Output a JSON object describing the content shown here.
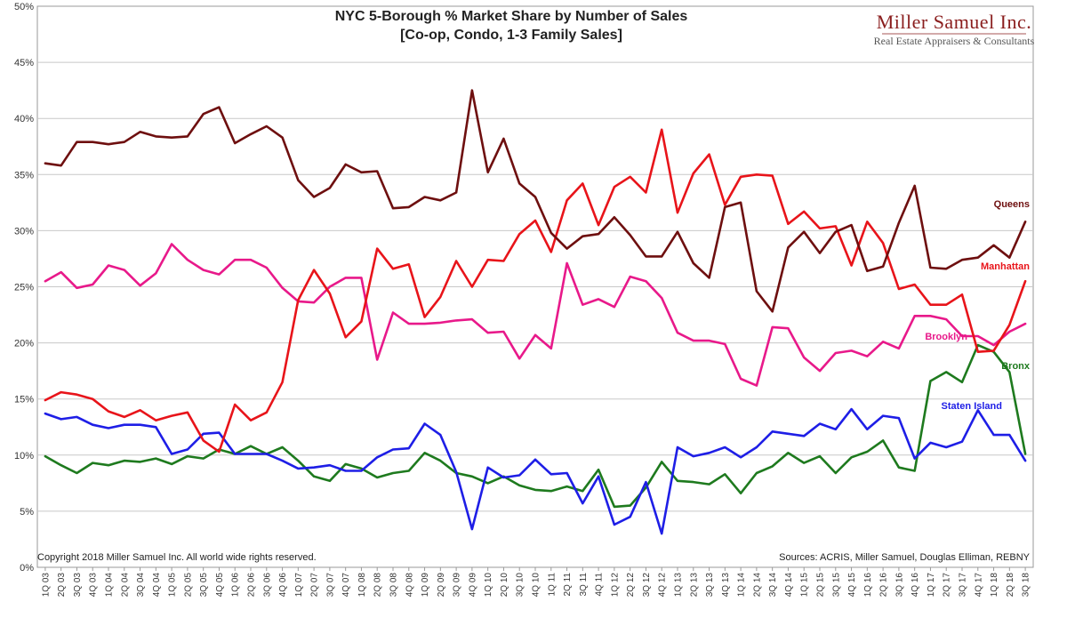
{
  "colors": {
    "Queens": "#6e0f0f",
    "Manhattan": "#e8141a",
    "Brooklyn": "#e8198a",
    "Bronx": "#1e7a1e",
    "Staten Island": "#1e1ee6"
  },
  "logo": {
    "name": "Miller Samuel Inc.",
    "subtitle": "Real Estate Appraisers & Consultants"
  },
  "copyright": "Copyright 2018 Miller Samuel Inc.  All world wide rights reserved.",
  "sources": "Sources: ACRIS, Miller Samuel, Douglas Elliman, REBNY",
  "chart_data": {
    "type": "line",
    "title": "NYC 5-Borough % Market Share by Number of Sales",
    "subtitle": "[Co-op, Condo, 1-3 Family Sales]",
    "xlabel": "",
    "ylabel": "",
    "ylim": [
      0,
      50
    ],
    "yticks": [
      "0%",
      "5%",
      "10%",
      "15%",
      "20%",
      "25%",
      "30%",
      "35%",
      "40%",
      "45%",
      "50%"
    ],
    "grid": true,
    "categories": [
      "1Q 03",
      "2Q 03",
      "3Q 03",
      "4Q 03",
      "1Q 04",
      "2Q 04",
      "3Q 04",
      "4Q 04",
      "1Q 05",
      "2Q 05",
      "3Q 05",
      "4Q 05",
      "1Q 06",
      "2Q 06",
      "3Q 06",
      "4Q 06",
      "1Q 07",
      "2Q 07",
      "3Q 07",
      "4Q 07",
      "1Q 08",
      "2Q 08",
      "3Q 08",
      "4Q 08",
      "1Q 09",
      "2Q 09",
      "3Q 09",
      "4Q 09",
      "1Q 10",
      "2Q 10",
      "3Q 10",
      "4Q 10",
      "1Q 11",
      "2Q 11",
      "3Q 11",
      "4Q 11",
      "1Q 12",
      "2Q 12",
      "3Q 12",
      "4Q 12",
      "1Q 13",
      "2Q 13",
      "3Q 13",
      "4Q 13",
      "1Q 14",
      "2Q 14",
      "3Q 14",
      "4Q 14",
      "1Q 15",
      "2Q 15",
      "3Q 15",
      "4Q 15",
      "1Q 16",
      "2Q 16",
      "3Q 16",
      "4Q 16",
      "1Q 17",
      "2Q 17",
      "3Q 17",
      "4Q 17",
      "1Q 18",
      "2Q 18",
      "3Q 18"
    ],
    "series": [
      {
        "name": "Queens",
        "values": [
          36.0,
          35.8,
          37.9,
          37.9,
          37.7,
          37.9,
          38.8,
          38.4,
          38.3,
          38.4,
          40.4,
          41.0,
          37.8,
          38.6,
          39.3,
          38.3,
          34.5,
          33.0,
          33.8,
          35.9,
          35.2,
          35.3,
          32.0,
          32.1,
          33.0,
          32.7,
          33.4,
          42.5,
          35.2,
          38.2,
          34.2,
          33.0,
          29.8,
          28.4,
          29.5,
          29.7,
          31.2,
          29.6,
          27.7,
          27.7,
          29.9,
          27.1,
          25.8,
          32.1,
          32.5,
          24.6,
          22.8,
          28.5,
          29.9,
          28.0,
          29.9,
          30.5,
          26.4,
          26.8,
          30.7,
          34.0,
          26.7,
          26.6,
          27.4,
          27.6,
          28.7,
          27.6,
          30.8
        ]
      },
      {
        "name": "Manhattan",
        "values": [
          14.9,
          15.6,
          15.4,
          15.0,
          13.9,
          13.4,
          14.0,
          13.1,
          13.5,
          13.8,
          11.3,
          10.3,
          14.5,
          13.1,
          13.8,
          16.5,
          23.8,
          26.5,
          24.4,
          20.5,
          21.9,
          28.4,
          26.6,
          27.0,
          22.3,
          24.1,
          27.3,
          25.0,
          27.4,
          27.3,
          29.7,
          30.9,
          28.1,
          32.7,
          34.2,
          30.5,
          33.9,
          34.8,
          33.4,
          39.0,
          31.6,
          35.1,
          36.8,
          32.3,
          34.8,
          35.0,
          34.9,
          30.6,
          31.7,
          30.2,
          30.4,
          26.9,
          30.8,
          28.9,
          24.8,
          25.2,
          23.4,
          23.4,
          24.3,
          19.2,
          19.3,
          21.6,
          25.5
        ]
      },
      {
        "name": "Brooklyn",
        "values": [
          25.5,
          26.3,
          24.9,
          25.2,
          26.9,
          26.5,
          25.1,
          26.2,
          28.8,
          27.4,
          26.5,
          26.1,
          27.4,
          27.4,
          26.7,
          24.9,
          23.7,
          23.6,
          25.0,
          25.8,
          25.8,
          18.5,
          22.7,
          21.7,
          21.7,
          21.8,
          22.0,
          22.1,
          20.9,
          21.0,
          18.6,
          20.7,
          19.5,
          27.1,
          23.4,
          23.9,
          23.2,
          25.9,
          25.5,
          24.0,
          20.9,
          20.2,
          20.2,
          19.9,
          16.8,
          16.2,
          21.4,
          21.3,
          18.7,
          17.5,
          19.1,
          19.3,
          18.8,
          20.1,
          19.5,
          22.4,
          22.4,
          22.1,
          20.6,
          20.6,
          19.8,
          21.0,
          21.7
        ]
      },
      {
        "name": "Bronx",
        "values": [
          9.9,
          9.1,
          8.4,
          9.3,
          9.1,
          9.5,
          9.4,
          9.7,
          9.2,
          9.9,
          9.7,
          10.5,
          10.1,
          10.8,
          10.1,
          10.7,
          9.5,
          8.1,
          7.7,
          9.2,
          8.8,
          8.0,
          8.4,
          8.6,
          10.2,
          9.5,
          8.4,
          8.1,
          7.5,
          8.1,
          7.3,
          6.9,
          6.8,
          7.2,
          6.8,
          8.7,
          5.4,
          5.5,
          7.1,
          9.4,
          7.7,
          7.6,
          7.4,
          8.3,
          6.6,
          8.4,
          9.0,
          10.2,
          9.3,
          9.9,
          8.4,
          9.8,
          10.3,
          11.3,
          8.9,
          8.6,
          16.6,
          17.4,
          16.5,
          19.8,
          19.2,
          17.4,
          10.1
        ]
      },
      {
        "name": "Staten Island",
        "values": [
          13.7,
          13.2,
          13.4,
          12.7,
          12.4,
          12.7,
          12.7,
          12.5,
          10.1,
          10.5,
          11.9,
          12.0,
          10.1,
          10.1,
          10.1,
          9.5,
          8.8,
          8.9,
          9.1,
          8.6,
          8.6,
          9.8,
          10.5,
          10.6,
          12.8,
          11.8,
          8.5,
          3.4,
          8.9,
          8.0,
          8.2,
          9.6,
          8.3,
          8.4,
          5.7,
          8.1,
          3.8,
          4.5,
          7.6,
          3.0,
          10.7,
          9.9,
          10.2,
          10.7,
          9.8,
          10.7,
          12.1,
          11.9,
          11.7,
          12.8,
          12.3,
          14.1,
          12.3,
          13.5,
          13.3,
          9.7,
          11.1,
          10.7,
          11.2,
          14.0,
          11.8,
          11.8,
          9.5
        ]
      }
    ],
    "series_labels": [
      "Queens",
      "Manhattan",
      "Brooklyn",
      "Bronx",
      "Staten Island"
    ]
  }
}
